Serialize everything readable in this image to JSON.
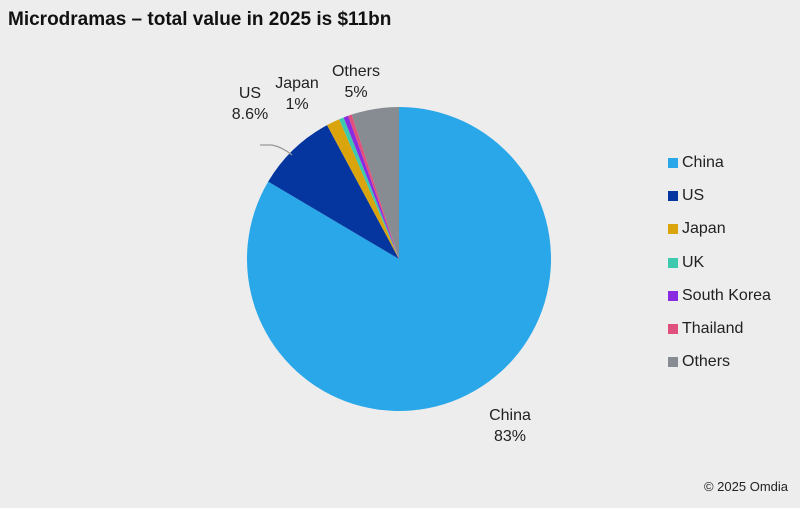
{
  "chart_data": {
    "type": "pie",
    "title": "Microdramas – total value in 2025 is $11bn",
    "start": "12 o'clock, clockwise",
    "legend_position": "right",
    "slices": [
      {
        "name": "China",
        "value": 83,
        "label": "83%",
        "color": "#29a7e8"
      },
      {
        "name": "US",
        "value": 8.6,
        "label": "8.6%",
        "color": "#0536a0"
      },
      {
        "name": "Japan",
        "value": 1.4,
        "label": "1%",
        "color": "#d9a40c"
      },
      {
        "name": "UK",
        "value": 0.5,
        "color": "#3cc9ad"
      },
      {
        "name": "South Korea",
        "value": 0.5,
        "color": "#8a2be2"
      },
      {
        "name": "Thailand",
        "value": 0.4,
        "color": "#e0507c"
      },
      {
        "name": "Others",
        "value": 5,
        "label": "5%",
        "color": "#878c93"
      }
    ]
  },
  "credit": "© 2025 Omdia"
}
